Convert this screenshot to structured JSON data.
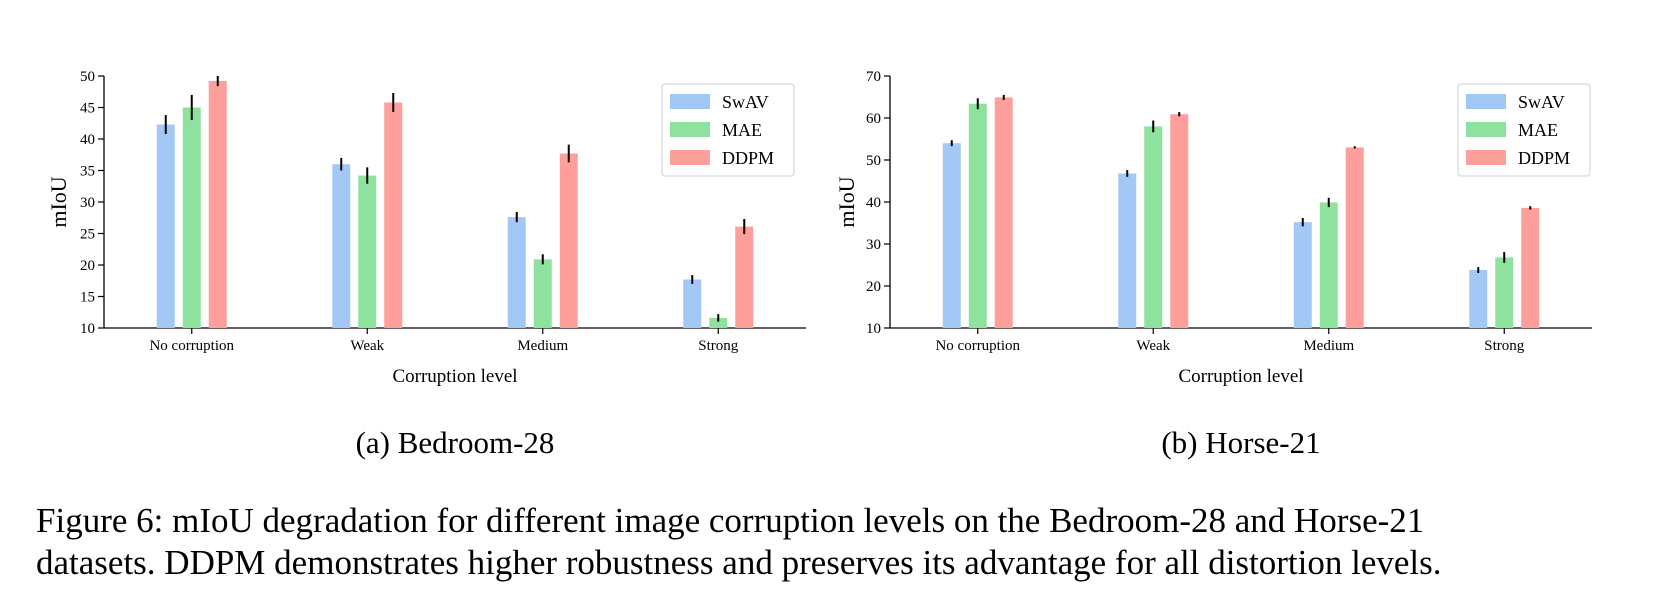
{
  "figure": {
    "caption_line1": "Figure 6: mIoU degradation for different image corruption levels on the Bedroom-28 and Horse-21",
    "caption_line2": "datasets. DDPM demonstrates higher robustness and preserves its advantage for all distortion levels."
  },
  "colors": {
    "SwAV": "#a3c8f5",
    "MAE": "#8fe29d",
    "DDPM": "#ff9f9b"
  },
  "chart_data": [
    {
      "type": "bar",
      "subcaption": "(a) Bedroom-28",
      "xlabel": "Corruption level",
      "ylabel": "mIoU",
      "ylim": [
        10,
        50
      ],
      "yticks": [
        10,
        15,
        20,
        25,
        30,
        35,
        40,
        45,
        50
      ],
      "categories": [
        "No corruption",
        "Weak",
        "Medium",
        "Strong"
      ],
      "legend_position": "top-right",
      "series": [
        {
          "name": "SwAV",
          "values": [
            42.3,
            36.0,
            27.6,
            17.7
          ],
          "errors": [
            1.5,
            1.0,
            0.8,
            0.7
          ]
        },
        {
          "name": "MAE",
          "values": [
            45.0,
            34.2,
            20.9,
            11.6
          ],
          "errors": [
            2.0,
            1.3,
            0.8,
            0.6
          ]
        },
        {
          "name": "DDPM",
          "values": [
            49.2,
            45.8,
            37.7,
            26.1
          ],
          "errors": [
            0.8,
            1.5,
            1.4,
            1.2
          ]
        }
      ]
    },
    {
      "type": "bar",
      "subcaption": "(b) Horse-21",
      "xlabel": "Corruption level",
      "ylabel": "mIoU",
      "ylim": [
        10,
        70
      ],
      "yticks": [
        10,
        20,
        30,
        40,
        50,
        60,
        70
      ],
      "categories": [
        "No corruption",
        "Weak",
        "Medium",
        "Strong"
      ],
      "legend_position": "top-right",
      "series": [
        {
          "name": "SwAV",
          "values": [
            54.0,
            46.8,
            35.2,
            23.8
          ],
          "errors": [
            0.7,
            0.8,
            1.0,
            0.7
          ]
        },
        {
          "name": "MAE",
          "values": [
            63.4,
            58.0,
            39.9,
            26.8
          ],
          "errors": [
            1.3,
            1.4,
            1.1,
            1.3
          ]
        },
        {
          "name": "DDPM",
          "values": [
            64.9,
            60.9,
            53.0,
            38.6
          ],
          "errors": [
            0.6,
            0.5,
            0.3,
            0.4
          ]
        }
      ]
    }
  ]
}
